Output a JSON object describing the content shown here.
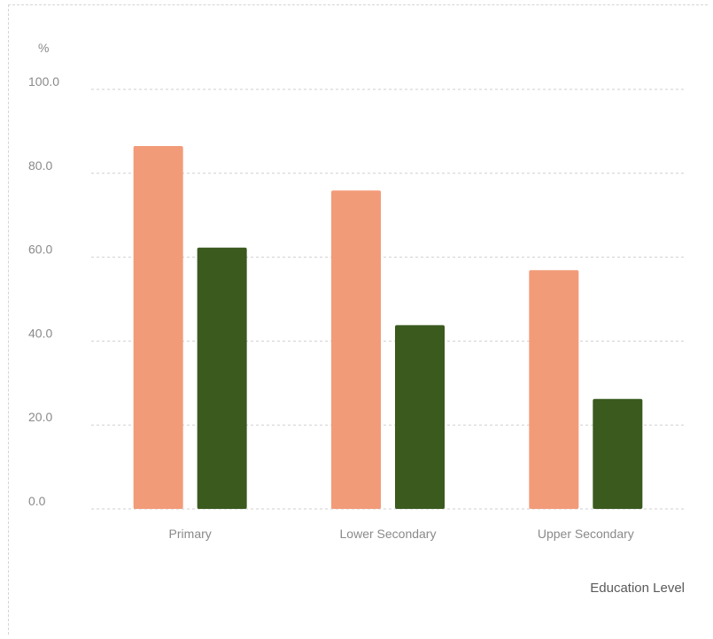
{
  "chart_data": {
    "type": "bar",
    "categories": [
      "Primary",
      "Lower Secondary",
      "Upper Secondary"
    ],
    "series": [
      {
        "values": [
          86.5,
          75.9,
          56.9
        ],
        "color": "#f29b79"
      },
      {
        "values": [
          62.3,
          43.8,
          26.2
        ],
        "color": "#3a5a1e"
      }
    ],
    "xlabel": "Education Level",
    "ylabel": "%",
    "ylim": [
      0,
      100
    ],
    "yticks": [
      "0.0",
      "20.0",
      "40.0",
      "60.0",
      "80.0",
      "100.0"
    ],
    "grid": true
  }
}
